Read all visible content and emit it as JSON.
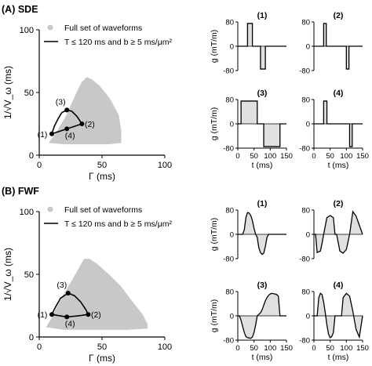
{
  "figure": {
    "panels": [
      {
        "id": "A",
        "heading": "(A) SDE",
        "scatter": {
          "xlabel": "Γ (ms)",
          "ylabel": "1/√V_ω (ms)",
          "xticks": [
            "0",
            "50",
            "100"
          ],
          "yticks": [
            "0",
            "50",
            "100"
          ],
          "legend": {
            "full_set": "Full set of waveforms",
            "selected": "T ≤ 120 ms and b ≥ 5 ms/μm²"
          }
        },
        "waveform_axes": {
          "ylabel": "g (mT/m)",
          "xlabel": "t (ms)",
          "yticks": [
            "80",
            "0",
            "-80"
          ],
          "xticks": [
            "0",
            "50",
            "100",
            "150"
          ]
        }
      },
      {
        "id": "B",
        "heading": "(B) FWF",
        "scatter": {
          "xlabel": "Γ (ms)",
          "ylabel": "1/√V_ω (ms)",
          "xticks": [
            "0",
            "50",
            "100"
          ],
          "yticks": [
            "0",
            "50",
            "100"
          ],
          "legend": {
            "full_set": "Full set of waveforms",
            "selected": "T ≤ 120 ms and b ≥ 5 ms/μm²"
          }
        },
        "waveform_axes": {
          "ylabel": "g (mT/m)",
          "xlabel": "t (ms)",
          "yticks": [
            "80",
            "0",
            "-80"
          ],
          "xticks": [
            "0",
            "50",
            "100",
            "150"
          ]
        }
      }
    ]
  },
  "chart_data": [
    {
      "panel": "A",
      "type": "scatter",
      "xlabel": "Γ (ms)",
      "ylabel": "1/√V_ω (ms)",
      "xlim": [
        0,
        100
      ],
      "ylim": [
        0,
        100
      ],
      "legend_position": "top-left",
      "full_set_region": [
        [
          8,
          10
        ],
        [
          15,
          20
        ],
        [
          22,
          32
        ],
        [
          30,
          50
        ],
        [
          34,
          58
        ],
        [
          38,
          62
        ],
        [
          42,
          60
        ],
        [
          48,
          55
        ],
        [
          56,
          45
        ],
        [
          63,
          32
        ],
        [
          65,
          20
        ],
        [
          65,
          10
        ],
        [
          55,
          9
        ],
        [
          40,
          9
        ],
        [
          20,
          9
        ],
        [
          8,
          10
        ]
      ],
      "selected_points": [
        {
          "label": "(1)",
          "x": 10,
          "y": 17
        },
        {
          "label": "(2)",
          "x": 34,
          "y": 25
        },
        {
          "label": "(3)",
          "x": 22,
          "y": 36
        },
        {
          "label": "(4)",
          "x": 22,
          "y": 21
        }
      ],
      "selected_curve": [
        [
          10,
          17
        ],
        [
          12,
          23
        ],
        [
          15,
          29
        ],
        [
          18,
          34
        ],
        [
          22,
          36
        ],
        [
          26,
          35
        ],
        [
          30,
          31
        ],
        [
          34,
          25
        ],
        [
          28,
          23
        ],
        [
          22,
          21
        ],
        [
          16,
          19
        ],
        [
          10,
          17
        ]
      ],
      "colors": {
        "full_set": "#c8c8c8",
        "selected": "#000000"
      }
    },
    {
      "panel": "A",
      "type": "line",
      "waveforms": [
        {
          "label": "(1)",
          "t": [
            0,
            30,
            30,
            45,
            45,
            70,
            70,
            85,
            85,
            150
          ],
          "g": [
            0,
            0,
            75,
            75,
            0,
            0,
            -75,
            -75,
            0,
            0
          ]
        },
        {
          "label": "(2)",
          "t": [
            0,
            30,
            30,
            38,
            38,
            100,
            100,
            108,
            108,
            150
          ],
          "g": [
            0,
            0,
            75,
            75,
            0,
            0,
            -75,
            -75,
            0,
            0
          ]
        },
        {
          "label": "(3)",
          "t": [
            0,
            10,
            10,
            60,
            60,
            80,
            80,
            130,
            130,
            150
          ],
          "g": [
            0,
            0,
            75,
            75,
            0,
            0,
            -75,
            -75,
            0,
            0
          ]
        },
        {
          "label": "(4)",
          "t": [
            0,
            30,
            30,
            40,
            40,
            110,
            110,
            118,
            118,
            150
          ],
          "g": [
            0,
            0,
            75,
            75,
            0,
            0,
            -75,
            -75,
            0,
            0
          ]
        }
      ],
      "xlim": [
        0,
        150
      ],
      "ylim": [
        -80,
        80
      ]
    },
    {
      "panel": "B",
      "type": "scatter",
      "xlabel": "Γ (ms)",
      "ylabel": "1/√V_ω (ms)",
      "xlim": [
        0,
        100
      ],
      "ylim": [
        0,
        100
      ],
      "legend_position": "top-left",
      "full_set_region": [
        [
          6,
          8
        ],
        [
          10,
          15
        ],
        [
          15,
          25
        ],
        [
          22,
          38
        ],
        [
          28,
          48
        ],
        [
          33,
          57
        ],
        [
          36,
          62
        ],
        [
          40,
          62
        ],
        [
          46,
          58
        ],
        [
          55,
          50
        ],
        [
          65,
          40
        ],
        [
          74,
          28
        ],
        [
          82,
          18
        ],
        [
          86,
          10
        ],
        [
          86,
          7
        ],
        [
          70,
          6
        ],
        [
          45,
          6
        ],
        [
          20,
          6
        ],
        [
          6,
          8
        ]
      ],
      "selected_points": [
        {
          "label": "(1)",
          "x": 10,
          "y": 18
        },
        {
          "label": "(2)",
          "x": 39,
          "y": 18
        },
        {
          "label": "(3)",
          "x": 23,
          "y": 35
        },
        {
          "label": "(4)",
          "x": 22,
          "y": 16
        }
      ],
      "selected_curve": [
        [
          10,
          18
        ],
        [
          13,
          24
        ],
        [
          17,
          31
        ],
        [
          23,
          35
        ],
        [
          28,
          33
        ],
        [
          33,
          28
        ],
        [
          37,
          22
        ],
        [
          39,
          18
        ],
        [
          32,
          17
        ],
        [
          22,
          16
        ],
        [
          16,
          17
        ],
        [
          10,
          18
        ]
      ],
      "colors": {
        "full_set": "#c8c8c8",
        "selected": "#000000"
      }
    },
    {
      "panel": "B",
      "type": "line",
      "waveforms": [
        {
          "label": "(1)",
          "t": [
            0,
            15,
            20,
            25,
            30,
            35,
            40,
            45,
            50,
            55,
            60,
            62,
            65,
            70,
            75,
            80,
            85,
            90,
            95,
            100,
            105,
            110,
            115,
            150
          ],
          "g": [
            0,
            0,
            15,
            55,
            72,
            70,
            62,
            45,
            20,
            0,
            -10,
            -25,
            -45,
            -60,
            -66,
            -62,
            -40,
            -10,
            0,
            0,
            0,
            0,
            0,
            0
          ]
        },
        {
          "label": "(2)",
          "t": [
            0,
            5,
            10,
            20,
            25,
            30,
            40,
            50,
            60,
            65,
            70,
            80,
            90,
            100,
            110,
            120,
            130,
            150
          ],
          "g": [
            0,
            0,
            -60,
            -55,
            -30,
            0,
            55,
            62,
            55,
            0,
            0,
            -55,
            -62,
            -50,
            0,
            75,
            60,
            0
          ]
        },
        {
          "label": "(3)",
          "t": [
            0,
            5,
            10,
            15,
            20,
            25,
            30,
            40,
            45,
            50,
            55,
            60,
            65,
            70,
            75,
            80,
            85,
            90,
            95,
            100,
            105,
            110,
            115,
            120,
            125,
            130,
            150
          ],
          "g": [
            0,
            0,
            -15,
            -35,
            -55,
            -68,
            -72,
            -74,
            -70,
            -55,
            -30,
            0,
            5,
            10,
            20,
            35,
            50,
            60,
            68,
            72,
            74,
            73,
            72,
            70,
            65,
            0,
            0
          ]
        },
        {
          "label": "(4)",
          "t": [
            0,
            10,
            15,
            20,
            25,
            30,
            35,
            40,
            45,
            50,
            55,
            60,
            65,
            70,
            75,
            80,
            85,
            90,
            100,
            110,
            120,
            130,
            140,
            150
          ],
          "g": [
            0,
            0,
            60,
            74,
            70,
            45,
            10,
            -30,
            -60,
            -72,
            -68,
            -55,
            0,
            0,
            0,
            0,
            0,
            60,
            74,
            65,
            15,
            -45,
            -70,
            0
          ]
        }
      ],
      "xlim": [
        0,
        150
      ],
      "ylim": [
        -80,
        80
      ]
    }
  ]
}
